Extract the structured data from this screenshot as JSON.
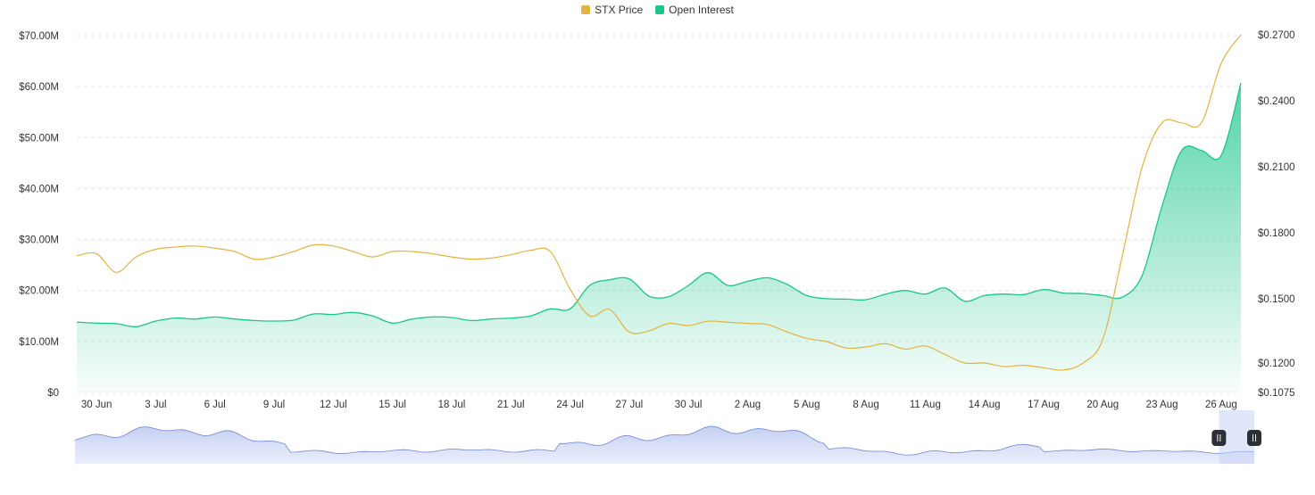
{
  "chart_data": {
    "type": "line",
    "title": "",
    "legend": {
      "position": "top",
      "entries": [
        {
          "label": "STX Price",
          "color": "#E3B341",
          "icon": "square"
        },
        {
          "label": "Open Interest",
          "color": "#1BC58B",
          "icon": "square"
        }
      ]
    },
    "x": [
      "29 Jun",
      "30 Jun",
      "1 Jul",
      "2 Jul",
      "3 Jul",
      "4 Jul",
      "5 Jul",
      "6 Jul",
      "7 Jul",
      "8 Jul",
      "9 Jul",
      "10 Jul",
      "11 Jul",
      "12 Jul",
      "13 Jul",
      "14 Jul",
      "15 Jul",
      "16 Jul",
      "17 Jul",
      "18 Jul",
      "19 Jul",
      "20 Jul",
      "21 Jul",
      "22 Jul",
      "23 Jul",
      "24 Jul",
      "25 Jul",
      "26 Jul",
      "27 Jul",
      "28 Jul",
      "29 Jul",
      "30 Jul",
      "31 Jul",
      "1 Aug",
      "2 Aug",
      "3 Aug",
      "4 Aug",
      "5 Aug",
      "6 Aug",
      "7 Aug",
      "8 Aug",
      "9 Aug",
      "10 Aug",
      "11 Aug",
      "12 Aug",
      "13 Aug",
      "14 Aug",
      "15 Aug",
      "16 Aug",
      "17 Aug",
      "18 Aug",
      "19 Aug",
      "20 Aug",
      "21 Aug",
      "22 Aug",
      "23 Aug",
      "24 Aug",
      "25 Aug",
      "26 Aug",
      "27 Aug"
    ],
    "x_tick_labels": [
      "30 Jun",
      "3 Jul",
      "6 Jul",
      "9 Jul",
      "12 Jul",
      "15 Jul",
      "18 Jul",
      "21 Jul",
      "24 Jul",
      "27 Jul",
      "30 Jul",
      "2 Aug",
      "5 Aug",
      "8 Aug",
      "11 Aug",
      "14 Aug",
      "17 Aug",
      "20 Aug",
      "23 Aug",
      "26 Aug"
    ],
    "y_left": {
      "ticks": [
        "$0",
        "$10.00M",
        "$20.00M",
        "$30.00M",
        "$40.00M",
        "$50.00M",
        "$60.00M",
        "$70.00M"
      ],
      "range": [
        0,
        70000000
      ]
    },
    "y_right": {
      "ticks": [
        "$0.1075",
        "$0.1200",
        "$0.1500",
        "$0.1800",
        "$0.2100",
        "$0.2400",
        "$0.2700"
      ],
      "range": [
        0.1075,
        0.27
      ]
    },
    "grid": true,
    "series": [
      {
        "name": "Open Interest",
        "axis": "left",
        "style": "area",
        "color": "#1BC58B",
        "values": [
          13.8,
          13.6,
          13.5,
          12.9,
          14.0,
          14.6,
          14.4,
          14.8,
          14.4,
          14.1,
          14.0,
          14.2,
          15.4,
          15.3,
          15.7,
          15.0,
          13.6,
          14.4,
          14.8,
          14.7,
          14.1,
          14.4,
          14.6,
          15.0,
          16.4,
          16.4,
          21.0,
          22.1,
          22.3,
          18.9,
          18.8,
          21.0,
          23.5,
          21.0,
          21.8,
          22.5,
          21.2,
          19.0,
          18.4,
          18.3,
          18.2,
          19.3,
          20.0,
          19.3,
          20.5,
          17.9,
          19.0,
          19.3,
          19.2,
          20.2,
          19.5,
          19.4,
          19.0,
          18.7,
          23.0,
          36.5,
          47.5,
          47.5,
          46.5,
          60.7
        ]
      },
      {
        "name": "STX Price",
        "axis": "right",
        "style": "line",
        "color": "#E3B341",
        "values": [
          0.1695,
          0.1705,
          0.162,
          0.169,
          0.1725,
          0.1735,
          0.174,
          0.173,
          0.1715,
          0.168,
          0.169,
          0.1715,
          0.1745,
          0.174,
          0.1715,
          0.169,
          0.1715,
          0.1715,
          0.1705,
          0.169,
          0.168,
          0.1685,
          0.17,
          0.172,
          0.1715,
          0.1545,
          0.142,
          0.145,
          0.1345,
          0.135,
          0.1385,
          0.1375,
          0.1395,
          0.139,
          0.1385,
          0.138,
          0.1345,
          0.1315,
          0.13,
          0.127,
          0.1275,
          0.129,
          0.1265,
          0.128,
          0.124,
          0.12,
          0.12,
          0.1185,
          0.119,
          0.118,
          0.117,
          0.12,
          0.131,
          0.17,
          0.21,
          0.23,
          0.23,
          0.23,
          0.257,
          0.27
        ]
      }
    ],
    "navigator": {
      "range_start_fraction": 0.97,
      "range_end_fraction": 1.0,
      "handle_icon": "pause-handle-icon"
    }
  }
}
